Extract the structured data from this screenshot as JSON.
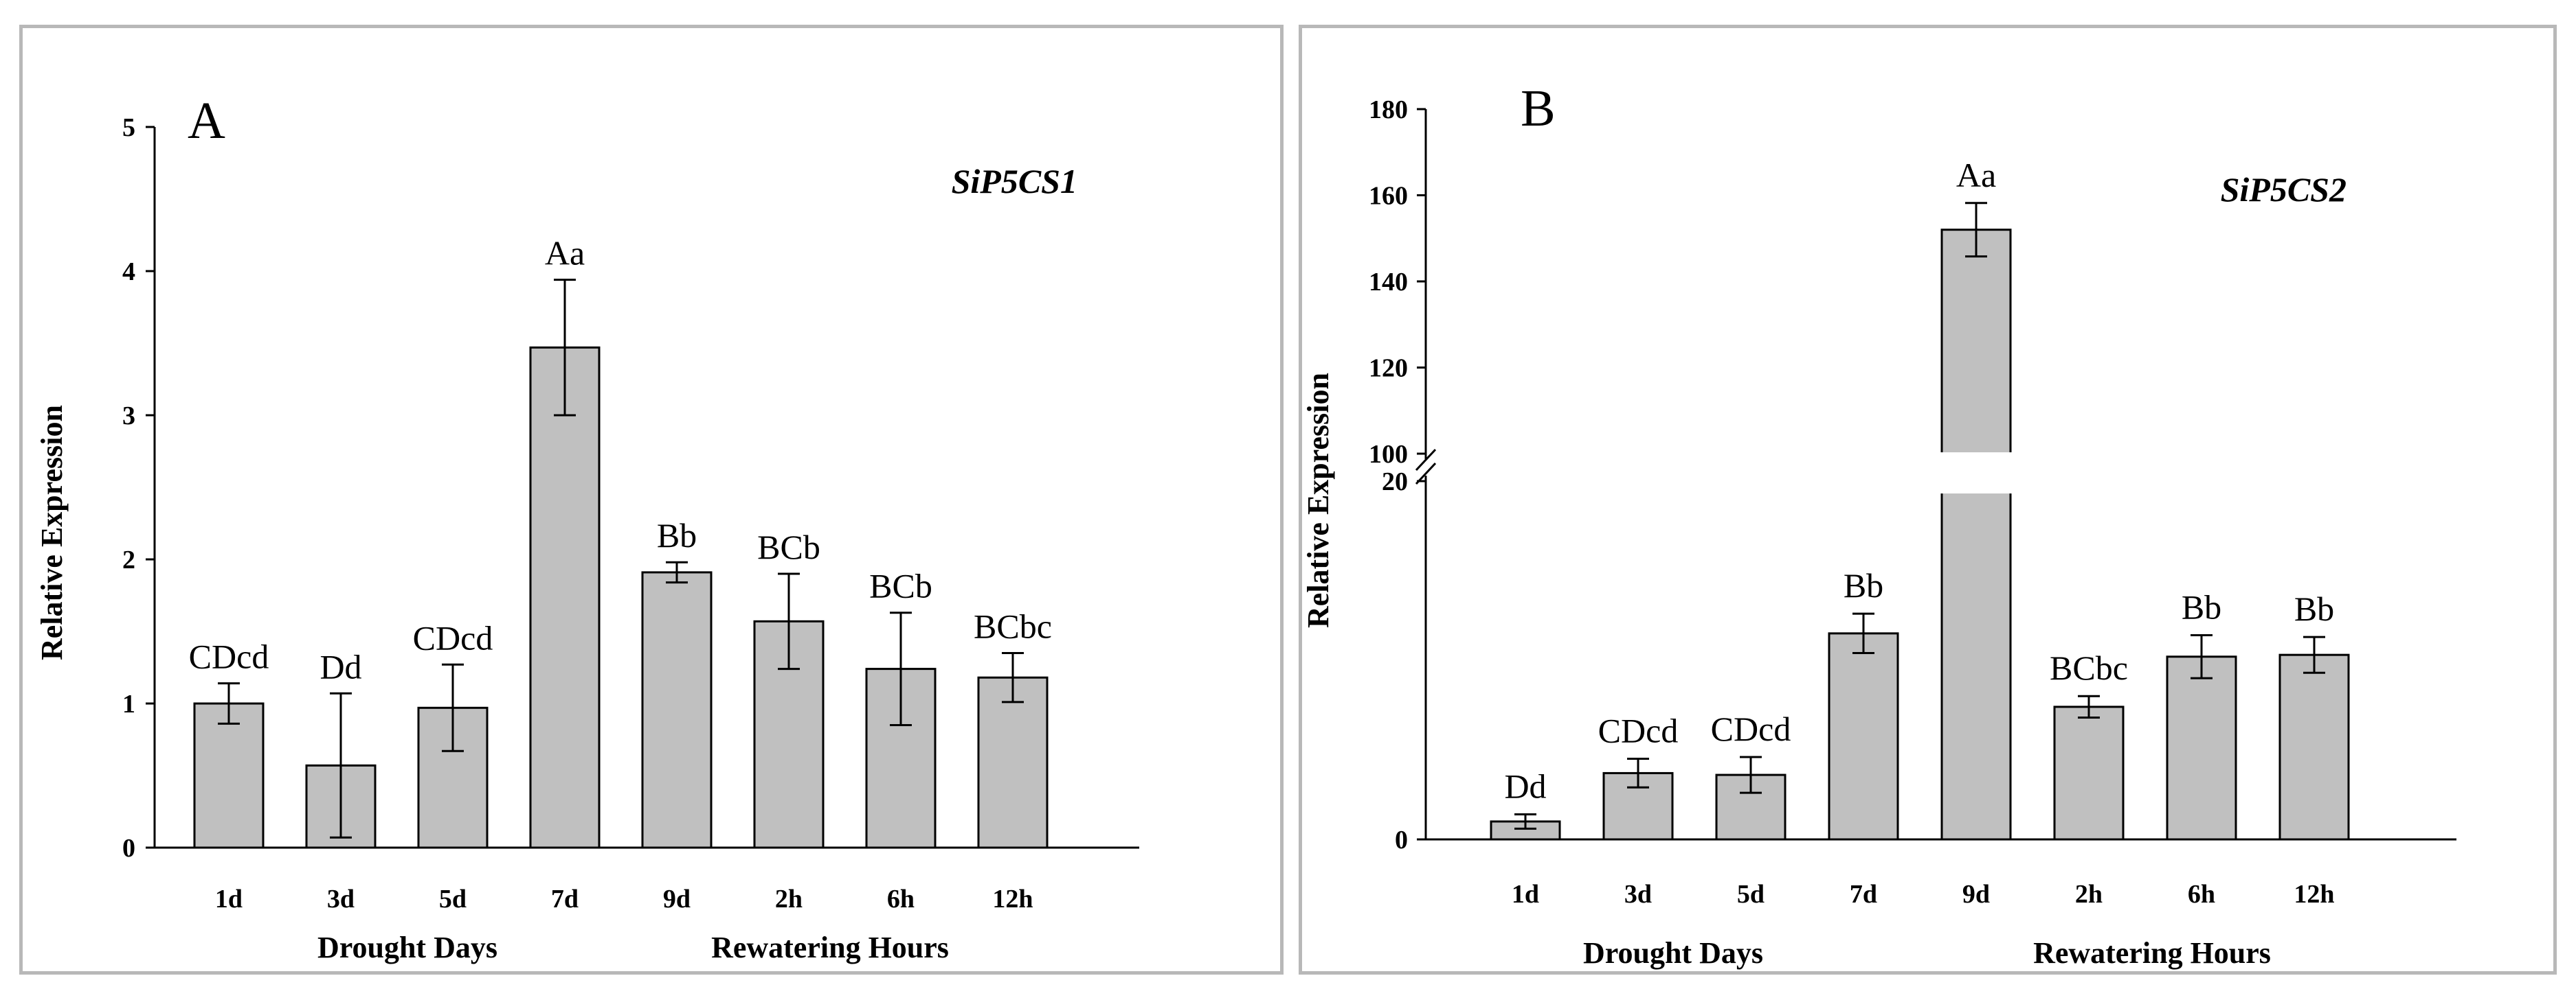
{
  "chart_data": [
    {
      "type": "bar",
      "panel_label": "A",
      "gene": "SiP5CS1",
      "categories": [
        "1d",
        "3d",
        "5d",
        "7d",
        "9d",
        "2h",
        "6h",
        "12h"
      ],
      "values": [
        1.0,
        0.57,
        0.97,
        3.47,
        1.91,
        1.57,
        1.24,
        1.18
      ],
      "errors": [
        0.14,
        0.5,
        0.3,
        0.47,
        0.07,
        0.33,
        0.39,
        0.17
      ],
      "significance": [
        "CDcd",
        "Dd",
        "CDcd",
        "Aa",
        "Bb",
        "BCb",
        "BCb",
        "BCbc"
      ],
      "ylabel": "Relative Expression",
      "ylim": [
        0,
        5
      ],
      "yticks": [
        "0",
        "1",
        "2",
        "3",
        "4",
        "5"
      ],
      "groups": [
        "Drought Days",
        "Rewatering Hours"
      ]
    },
    {
      "type": "bar",
      "panel_label": "B",
      "gene": "SiP5CS2",
      "categories": [
        "1d",
        "3d",
        "5d",
        "7d",
        "9d",
        "2h",
        "6h",
        "12h"
      ],
      "values": [
        1.0,
        3.7,
        3.6,
        11.5,
        152,
        7.4,
        10.2,
        10.3
      ],
      "errors": [
        0.4,
        0.8,
        1.0,
        1.1,
        6.2,
        0.6,
        1.2,
        1.0
      ],
      "significance": [
        "Dd",
        "CDcd",
        "CDcd",
        "Bb",
        "Aa",
        "BCbc",
        "Bb",
        "Bb"
      ],
      "ylabel": "Relative Expression",
      "axis_break": {
        "lower_range": [
          0,
          20
        ],
        "upper_range": [
          100,
          180
        ]
      },
      "yticks": [
        "0",
        "20",
        "100",
        "120",
        "140",
        "160",
        "180"
      ],
      "groups": [
        "Drought Days",
        "Rewatering Hours"
      ]
    }
  ]
}
